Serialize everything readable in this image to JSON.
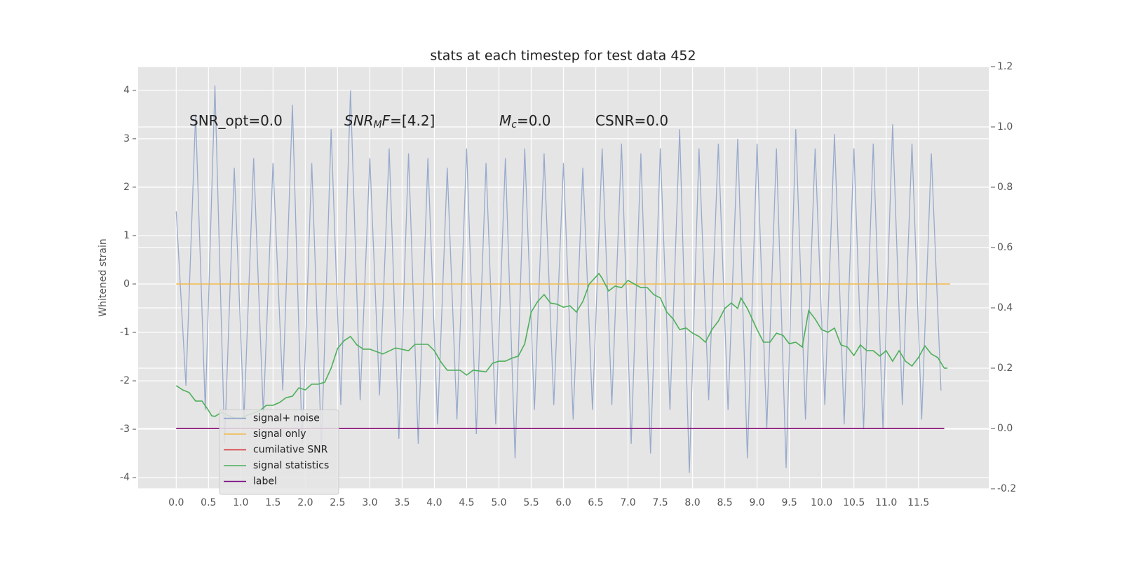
{
  "chart_data": {
    "type": "line",
    "title": "stats at each timestep for test data 452",
    "y_label": "Whitened strain",
    "xlim": [
      -0.59,
      12.59
    ],
    "ylim": [
      -4.23,
      4.49
    ],
    "y2lim": [
      -0.2,
      1.2
    ],
    "grid": true,
    "legend": "lower left",
    "xticks": [
      {
        "value": 0,
        "label": "0.0"
      },
      0.5,
      {
        "value": 1,
        "label": "1.0"
      },
      1.5,
      {
        "value": 2,
        "label": "2.0"
      },
      2.5,
      {
        "value": 3,
        "label": "3.0"
      },
      3.5,
      {
        "value": 4,
        "label": "4.0"
      },
      4.5,
      {
        "value": 5,
        "label": "5.0"
      },
      5.5,
      {
        "value": 6,
        "label": "6.0"
      },
      6.5,
      {
        "value": 7,
        "label": "7.0"
      },
      7.5,
      {
        "value": 8,
        "label": "8.0"
      },
      8.5,
      {
        "value": 9,
        "label": "9.0"
      },
      9.5,
      {
        "value": 10,
        "label": "10.0"
      },
      10.5,
      {
        "value": 11,
        "label": "11.0"
      },
      11.5
    ],
    "yticks": [
      -4,
      -3,
      -2,
      -1,
      0,
      1,
      2,
      3,
      4
    ],
    "y2ticks": [
      -0.2,
      {
        "value": 0,
        "label": "0.0"
      },
      0.2,
      0.4,
      0.6,
      0.8,
      {
        "value": 1,
        "label": "1.0"
      },
      1.2
    ],
    "annotations": [
      {
        "parts": [
          {
            "text": "SNR_opt=0.0",
            "style": "normal"
          }
        ]
      },
      {
        "parts": [
          {
            "text": "SNR",
            "style": "italic"
          },
          {
            "text": "M",
            "style": "sub"
          },
          {
            "text": "F",
            "style": "italic"
          },
          {
            "text": "=[4.2]",
            "style": "normal"
          }
        ]
      },
      {
        "parts": [
          {
            "text": "M",
            "style": "italic"
          },
          {
            "text": "c",
            "style": "sub"
          },
          {
            "text": "=0.0",
            "style": "normal"
          }
        ]
      },
      {
        "parts": [
          {
            "text": "CSNR=0.0",
            "style": "normal"
          }
        ]
      }
    ],
    "series": [
      {
        "name": "signal+ noise",
        "color": "#8fa3c9",
        "axis": "y",
        "x": [
          0,
          0.15,
          0.3,
          0.45,
          0.6,
          0.75,
          0.9,
          1.05,
          1.2,
          1.35,
          1.5,
          1.65,
          1.8,
          1.95,
          2.1,
          2.25,
          2.4,
          2.55,
          2.7,
          2.85,
          3,
          3.15,
          3.3,
          3.45,
          3.6,
          3.75,
          3.9,
          4.05,
          4.2,
          4.35,
          4.5,
          4.65,
          4.8,
          4.95,
          5.1,
          5.25,
          5.4,
          5.55,
          5.7,
          5.85,
          6,
          6.15,
          6.3,
          6.45,
          6.6,
          6.75,
          6.9,
          7.05,
          7.2,
          7.35,
          7.5,
          7.65,
          7.8,
          7.95,
          8.1,
          8.25,
          8.4,
          8.55,
          8.7,
          8.85,
          9,
          9.15,
          9.3,
          9.45,
          9.6,
          9.75,
          9.9,
          10.05,
          10.2,
          10.35,
          10.5,
          10.65,
          10.8,
          10.95,
          11.1,
          11.25,
          11.4,
          11.55,
          11.7,
          11.85
        ],
        "values": [
          1.5,
          -2.1,
          3.5,
          -2.6,
          4.1,
          -3.3,
          2.4,
          -2.8,
          2.6,
          -2.7,
          2.5,
          -2.2,
          3.7,
          -3.3,
          2.5,
          -3.4,
          3.2,
          -2.5,
          4.0,
          -2.4,
          2.6,
          -2.3,
          2.8,
          -3.2,
          2.7,
          -3.3,
          2.6,
          -2.9,
          2.4,
          -2.8,
          2.8,
          -3.1,
          2.5,
          -2.9,
          2.6,
          -3.6,
          2.8,
          -2.6,
          2.7,
          -2.5,
          2.5,
          -2.8,
          2.4,
          -2.6,
          2.8,
          -2.5,
          2.9,
          -3.3,
          2.7,
          -3.5,
          2.8,
          -2.6,
          3.2,
          -3.9,
          2.8,
          -2.4,
          2.9,
          -2.6,
          3.0,
          -3.6,
          2.9,
          -3.0,
          2.8,
          -3.8,
          3.2,
          -2.8,
          2.8,
          -2.5,
          3.1,
          -2.9,
          2.8,
          -3.0,
          2.9,
          -3.0,
          3.3,
          -2.5,
          2.9,
          -2.8,
          2.7,
          -2.2
        ]
      },
      {
        "name": "signal only",
        "color": "#f2b94b",
        "axis": "y",
        "x": [
          0,
          11.99
        ],
        "values": [
          0,
          0
        ]
      },
      {
        "name": "cumilative SNR",
        "color": "#d62728",
        "axis": "y2",
        "x": [
          0,
          11.9
        ],
        "values": [
          0,
          0
        ]
      },
      {
        "name": "signal statistics",
        "color": "#4daf5a",
        "axis": "y2",
        "x": [
          0,
          0.1,
          0.2,
          0.3,
          0.4,
          0.5,
          0.55,
          0.6,
          0.7,
          0.8,
          0.9,
          1.0,
          1.1,
          1.2,
          1.3,
          1.4,
          1.5,
          1.6,
          1.7,
          1.8,
          1.9,
          2.0,
          2.1,
          2.2,
          2.3,
          2.4,
          2.5,
          2.6,
          2.7,
          2.8,
          2.9,
          3.0,
          3.2,
          3.4,
          3.6,
          3.7,
          3.9,
          4.0,
          4.1,
          4.2,
          4.4,
          4.5,
          4.6,
          4.8,
          4.9,
          5.0,
          5.1,
          5.2,
          5.3,
          5.4,
          5.5,
          5.6,
          5.7,
          5.8,
          5.9,
          6.0,
          6.1,
          6.2,
          6.3,
          6.4,
          6.5,
          6.55,
          6.6,
          6.7,
          6.8,
          6.9,
          7.0,
          7.1,
          7.2,
          7.3,
          7.4,
          7.5,
          7.6,
          7.7,
          7.8,
          7.9,
          8.0,
          8.1,
          8.2,
          8.3,
          8.4,
          8.5,
          8.6,
          8.7,
          8.75,
          8.85,
          9.0,
          9.1,
          9.2,
          9.3,
          9.4,
          9.5,
          9.6,
          9.7,
          9.8,
          9.9,
          10.0,
          10.1,
          10.2,
          10.3,
          10.4,
          10.5,
          10.6,
          10.7,
          10.8,
          10.9,
          11.0,
          11.1,
          11.2,
          11.3,
          11.4,
          11.5,
          11.6,
          11.7,
          11.8,
          11.9,
          11.95
        ],
        "values": [
          0.142,
          0.128,
          0.119,
          0.091,
          0.091,
          0.06,
          0.042,
          0.04,
          0.053,
          0.044,
          0.035,
          0.033,
          0.044,
          0.051,
          0.06,
          0.077,
          0.077,
          0.086,
          0.102,
          0.107,
          0.135,
          0.128,
          0.147,
          0.147,
          0.153,
          0.2,
          0.265,
          0.291,
          0.305,
          0.277,
          0.263,
          0.263,
          0.247,
          0.267,
          0.258,
          0.279,
          0.279,
          0.258,
          0.221,
          0.193,
          0.193,
          0.177,
          0.193,
          0.188,
          0.216,
          0.223,
          0.223,
          0.233,
          0.24,
          0.281,
          0.386,
          0.421,
          0.444,
          0.416,
          0.412,
          0.402,
          0.407,
          0.386,
          0.421,
          0.479,
          0.502,
          0.514,
          0.498,
          0.456,
          0.472,
          0.467,
          0.491,
          0.479,
          0.467,
          0.467,
          0.444,
          0.433,
          0.386,
          0.363,
          0.328,
          0.333,
          0.316,
          0.305,
          0.286,
          0.328,
          0.356,
          0.398,
          0.416,
          0.398,
          0.433,
          0.398,
          0.328,
          0.286,
          0.286,
          0.316,
          0.309,
          0.281,
          0.286,
          0.27,
          0.391,
          0.363,
          0.328,
          0.319,
          0.333,
          0.277,
          0.27,
          0.242,
          0.277,
          0.258,
          0.258,
          0.24,
          0.258,
          0.223,
          0.258,
          0.223,
          0.207,
          0.235,
          0.274,
          0.247,
          0.235,
          0.2,
          0.2
        ]
      },
      {
        "name": "label",
        "color": "#7b0d86",
        "axis": "y2",
        "x": [
          0,
          11.9
        ],
        "values": [
          0,
          0
        ]
      }
    ]
  }
}
